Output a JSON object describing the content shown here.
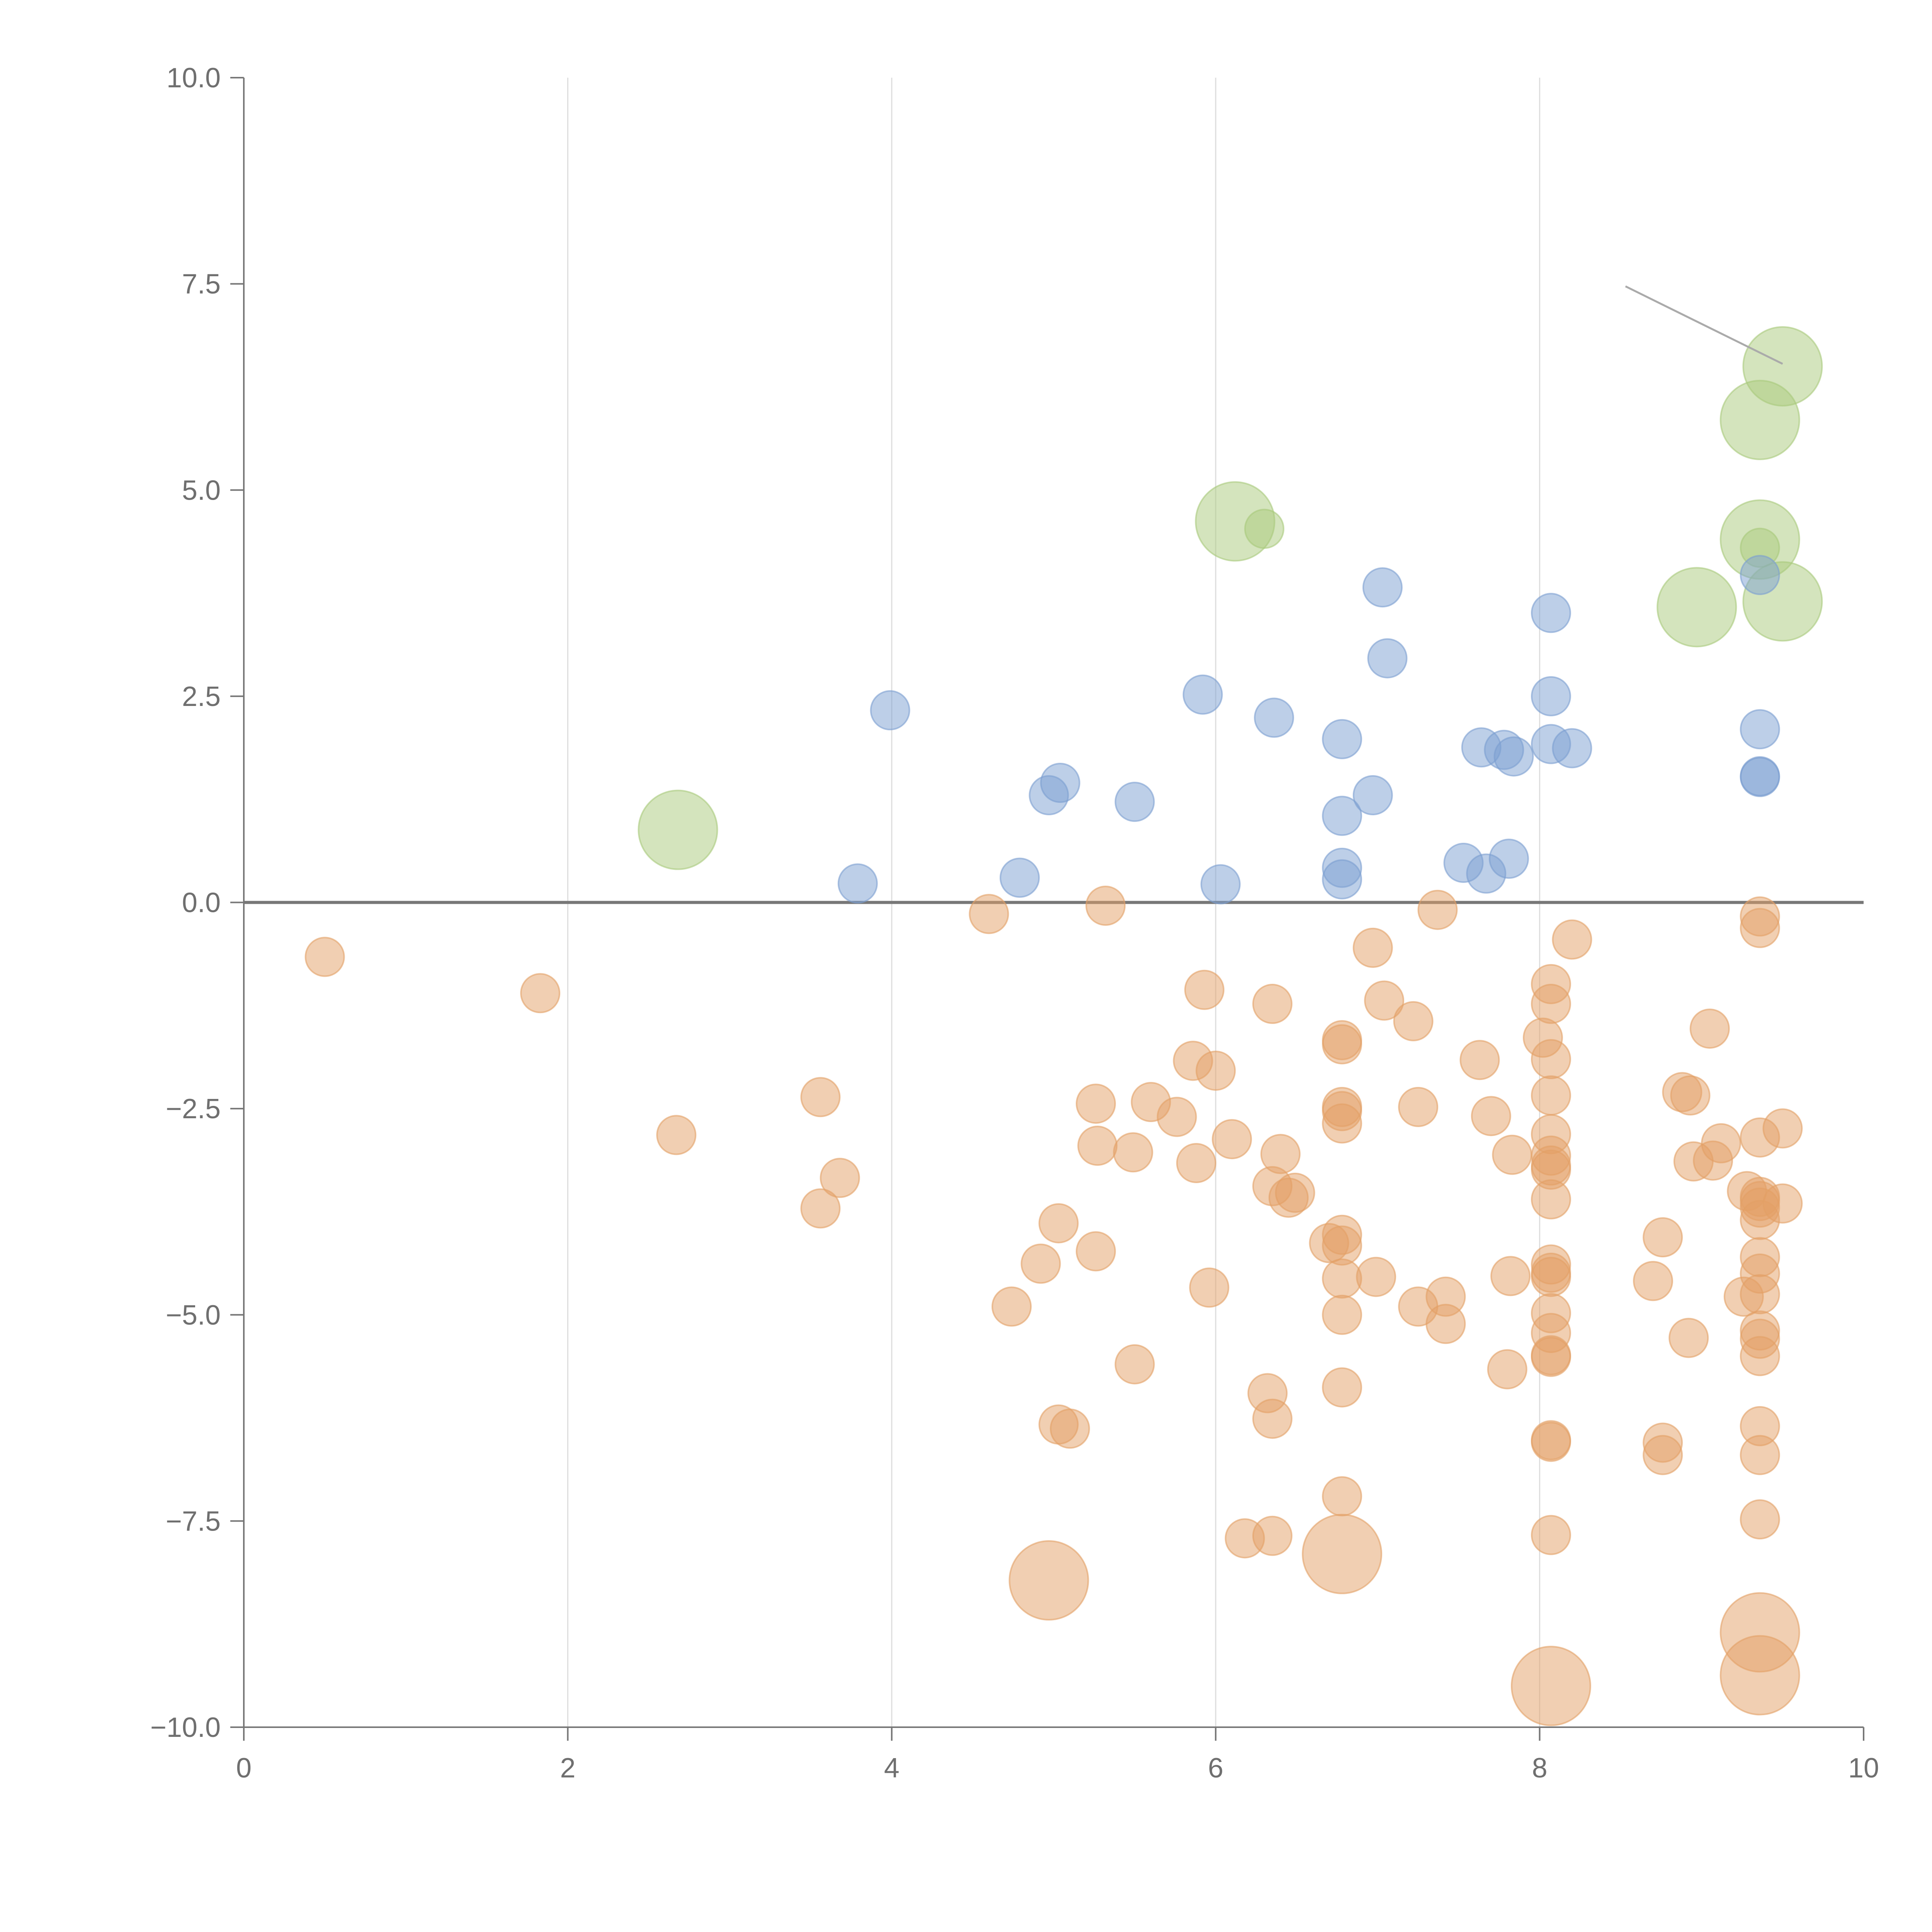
{
  "chart_data": {
    "type": "scatter",
    "title": "",
    "xlabel": "",
    "ylabel": "",
    "xlim": [
      0,
      10
    ],
    "ylim": [
      -10,
      10
    ],
    "grid": "vertical",
    "x_ticks": [
      0,
      2,
      4,
      6,
      8,
      10
    ],
    "x_tick_labels": [
      "0",
      "2",
      "4",
      "6",
      "8",
      "10"
    ],
    "y_ticks": [
      10,
      7.5,
      5,
      2.5,
      0,
      -2.5,
      -5,
      -7.5,
      -10
    ],
    "y_tick_labels": [
      "10.0",
      "7.5",
      "5.0",
      "2.5",
      "0.0",
      "−2.5",
      "−5.0",
      "−7.5",
      "−10.0"
    ],
    "zero_line": 0,
    "annotation_line": {
      "from": [
        8.53,
        7.47
      ],
      "to": [
        9.5,
        6.53
      ]
    },
    "series": [
      {
        "name": "green",
        "color": "#a9c97c",
        "points": [
          [
            2.68,
            0.88,
            3
          ],
          [
            6.12,
            4.62,
            3
          ],
          [
            6.3,
            4.53,
            1
          ],
          [
            9.5,
            6.5,
            3
          ],
          [
            9.36,
            5.85,
            3
          ],
          [
            9.36,
            4.4,
            3
          ],
          [
            9.36,
            4.3,
            1
          ],
          [
            8.97,
            3.58,
            3
          ],
          [
            9.5,
            3.65,
            3
          ]
        ]
      },
      {
        "name": "blue",
        "color": "#7c9fd1",
        "points": [
          [
            3.99,
            2.33,
            1
          ],
          [
            3.79,
            0.23,
            1
          ],
          [
            4.79,
            0.3,
            1
          ],
          [
            4.97,
            1.3,
            1
          ],
          [
            5.04,
            1.45,
            1
          ],
          [
            5.5,
            1.22,
            1
          ],
          [
            5.92,
            2.52,
            1
          ],
          [
            6.03,
            0.22,
            1
          ],
          [
            6.36,
            2.24,
            1
          ],
          [
            6.78,
            1.98,
            1
          ],
          [
            6.78,
            1.05,
            1
          ],
          [
            6.78,
            0.42,
            1
          ],
          [
            6.78,
            0.28,
            1
          ],
          [
            6.97,
            1.3,
            1
          ],
          [
            7.03,
            3.82,
            1
          ],
          [
            7.06,
            2.96,
            1
          ],
          [
            7.53,
            0.48,
            1
          ],
          [
            7.64,
            1.88,
            1
          ],
          [
            7.67,
            0.35,
            1
          ],
          [
            7.78,
            1.85,
            1
          ],
          [
            7.81,
            0.53,
            1
          ],
          [
            7.84,
            1.77,
            1
          ],
          [
            8.07,
            3.51,
            1
          ],
          [
            8.07,
            2.5,
            1
          ],
          [
            8.07,
            1.92,
            1
          ],
          [
            8.2,
            1.87,
            1
          ],
          [
            9.36,
            3.97,
            1
          ],
          [
            9.36,
            2.1,
            1
          ],
          [
            9.36,
            1.53,
            1
          ],
          [
            9.36,
            1.52,
            1
          ]
        ]
      },
      {
        "name": "orange",
        "color": "#e3a066",
        "points": [
          [
            0.5,
            -0.66,
            1
          ],
          [
            1.83,
            -1.1,
            1
          ],
          [
            2.67,
            -2.82,
            1
          ],
          [
            3.56,
            -2.36,
            1
          ],
          [
            3.56,
            -3.71,
            1
          ],
          [
            3.68,
            -3.34,
            1
          ],
          [
            4.6,
            -0.14,
            1
          ],
          [
            4.74,
            -4.9,
            1
          ],
          [
            4.92,
            -4.38,
            1
          ],
          [
            4.97,
            -8.22,
            3
          ],
          [
            5.03,
            -3.89,
            1
          ],
          [
            5.03,
            -6.33,
            1
          ],
          [
            5.1,
            -6.38,
            1
          ],
          [
            5.26,
            -2.44,
            1
          ],
          [
            5.26,
            -4.23,
            1
          ],
          [
            5.27,
            -2.95,
            1
          ],
          [
            5.32,
            -0.04,
            1
          ],
          [
            5.49,
            -3.03,
            1
          ],
          [
            5.5,
            -5.6,
            1
          ],
          [
            5.6,
            -2.42,
            1
          ],
          [
            5.76,
            -2.6,
            1
          ],
          [
            5.86,
            -1.92,
            1
          ],
          [
            5.88,
            -3.16,
            1
          ],
          [
            5.93,
            -1.06,
            1
          ],
          [
            5.96,
            -4.67,
            1
          ],
          [
            6.0,
            -2.04,
            1
          ],
          [
            6.1,
            -2.87,
            1
          ],
          [
            6.18,
            -7.71,
            1
          ],
          [
            6.32,
            -5.95,
            1
          ],
          [
            6.35,
            -1.23,
            1
          ],
          [
            6.35,
            -3.44,
            1
          ],
          [
            6.35,
            -6.26,
            1
          ],
          [
            6.35,
            -7.68,
            1
          ],
          [
            6.4,
            -3.05,
            1
          ],
          [
            6.45,
            -3.58,
            1
          ],
          [
            6.49,
            -3.52,
            1
          ],
          [
            6.7,
            -4.13,
            1
          ],
          [
            6.78,
            -1.67,
            1
          ],
          [
            6.78,
            -1.72,
            1
          ],
          [
            6.78,
            -2.48,
            1
          ],
          [
            6.78,
            -2.53,
            1
          ],
          [
            6.78,
            -2.68,
            1
          ],
          [
            6.78,
            -4.03,
            1
          ],
          [
            6.78,
            -4.16,
            1
          ],
          [
            6.78,
            -4.56,
            1
          ],
          [
            6.78,
            -5.0,
            1
          ],
          [
            6.78,
            -5.88,
            1
          ],
          [
            6.78,
            -7.2,
            1
          ],
          [
            6.78,
            -7.9,
            3
          ],
          [
            6.97,
            -0.55,
            1
          ],
          [
            6.99,
            -4.54,
            1
          ],
          [
            7.04,
            -1.19,
            1
          ],
          [
            7.22,
            -1.44,
            1
          ],
          [
            7.25,
            -2.48,
            1
          ],
          [
            7.25,
            -4.9,
            1
          ],
          [
            7.37,
            -0.09,
            1
          ],
          [
            7.42,
            -4.78,
            1
          ],
          [
            7.42,
            -5.11,
            1
          ],
          [
            7.63,
            -1.91,
            1
          ],
          [
            7.7,
            -2.59,
            1
          ],
          [
            7.8,
            -5.66,
            1
          ],
          [
            7.82,
            -4.53,
            1
          ],
          [
            7.83,
            -3.06,
            1
          ],
          [
            8.02,
            -1.64,
            1
          ],
          [
            8.07,
            -0.99,
            1
          ],
          [
            8.07,
            -1.23,
            1
          ],
          [
            8.07,
            -1.9,
            1
          ],
          [
            8.07,
            -2.34,
            1
          ],
          [
            8.07,
            -2.81,
            1
          ],
          [
            8.07,
            -3.07,
            1
          ],
          [
            8.07,
            -3.19,
            1
          ],
          [
            8.07,
            -3.24,
            1
          ],
          [
            8.07,
            -3.6,
            1
          ],
          [
            8.07,
            -4.39,
            1
          ],
          [
            8.07,
            -4.49,
            1
          ],
          [
            8.07,
            -4.54,
            1
          ],
          [
            8.07,
            -4.98,
            1
          ],
          [
            8.07,
            -5.22,
            1
          ],
          [
            8.07,
            -5.49,
            1
          ],
          [
            8.07,
            -5.51,
            1
          ],
          [
            8.07,
            -6.52,
            1
          ],
          [
            8.07,
            -6.54,
            1
          ],
          [
            8.07,
            -7.67,
            1
          ],
          [
            8.07,
            -9.5,
            3
          ],
          [
            8.2,
            -0.45,
            1
          ],
          [
            8.7,
            -4.59,
            1
          ],
          [
            8.76,
            -4.06,
            1
          ],
          [
            8.76,
            -6.55,
            1
          ],
          [
            8.76,
            -6.7,
            1
          ],
          [
            8.88,
            -2.3,
            1
          ],
          [
            8.93,
            -2.34,
            1
          ],
          [
            8.92,
            -5.28,
            1
          ],
          [
            8.95,
            -3.14,
            1
          ],
          [
            9.05,
            -1.53,
            1
          ],
          [
            9.07,
            -3.13,
            1
          ],
          [
            9.12,
            -2.92,
            1
          ],
          [
            9.26,
            -4.78,
            1
          ],
          [
            9.28,
            -3.5,
            1
          ],
          [
            9.36,
            -0.17,
            1
          ],
          [
            9.36,
            -0.31,
            1
          ],
          [
            9.36,
            -2.85,
            1
          ],
          [
            9.36,
            -3.57,
            1
          ],
          [
            9.36,
            -3.62,
            1
          ],
          [
            9.36,
            -3.7,
            1
          ],
          [
            9.36,
            -3.85,
            1
          ],
          [
            9.36,
            -4.3,
            1
          ],
          [
            9.36,
            -4.5,
            1
          ],
          [
            9.36,
            -4.75,
            1
          ],
          [
            9.36,
            -5.19,
            1
          ],
          [
            9.36,
            -5.29,
            1
          ],
          [
            9.36,
            -5.5,
            1
          ],
          [
            9.36,
            -6.35,
            1
          ],
          [
            9.36,
            -6.7,
            1
          ],
          [
            9.36,
            -7.48,
            1
          ],
          [
            9.36,
            -8.85,
            3
          ],
          [
            9.36,
            -9.37,
            3
          ],
          [
            9.5,
            -2.74,
            1
          ],
          [
            9.5,
            -3.65,
            1
          ]
        ]
      }
    ]
  }
}
